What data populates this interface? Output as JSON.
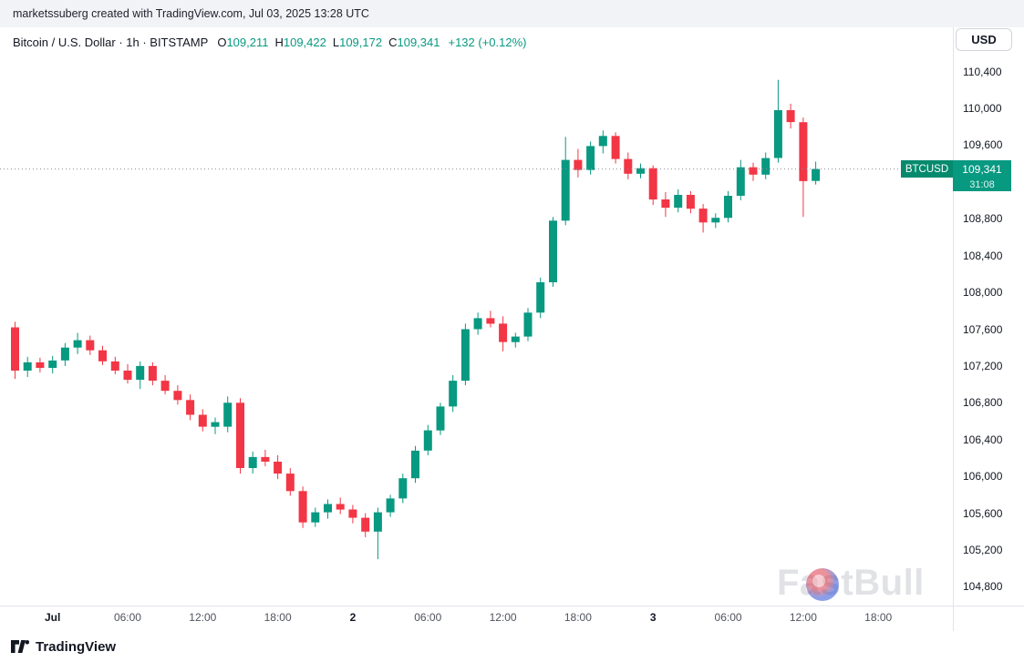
{
  "attribution": {
    "text": "marketssuberg created with TradingView.com, Jul 03, 2025 13:28 UTC"
  },
  "header": {
    "symbol_title": "Bitcoin / U.S. Dollar · 1h · BITSTAMP",
    "ohlc_display": {
      "o_label": "O",
      "o": "109,211",
      "h_label": "H",
      "h": "109,422",
      "l_label": "L",
      "l": "109,172",
      "c_label": "C",
      "c": "109,341",
      "change": "+132 (+0.12%)"
    },
    "currency_button": "USD"
  },
  "price_label": {
    "symbol": "BTCUSD",
    "price": "109,341",
    "countdown": "31:08"
  },
  "watermark": {
    "text": "FastBull"
  },
  "footer": {
    "brand": "TradingView"
  },
  "colors": {
    "up": "#089981",
    "down": "#f23645",
    "text": "#131722",
    "muted": "#787b86",
    "border": "#e0e3eb",
    "label_bg": "#089981"
  },
  "chart_data": {
    "type": "candlestick",
    "title": "Bitcoin / U.S. Dollar",
    "symbol": "BTCUSD",
    "exchange": "BITSTAMP",
    "interval": "1h",
    "grid": false,
    "ylim": [
      104650,
      110550
    ],
    "price_line": 109341,
    "countdown": "31:08",
    "ohlc_current": {
      "open": 109211,
      "high": 109422,
      "low": 109172,
      "close": 109341,
      "change": 132,
      "change_pct": 0.12
    },
    "y_axis_labels": [
      110400,
      110000,
      109600,
      108800,
      108400,
      108000,
      107600,
      107200,
      106800,
      106400,
      106000,
      105600,
      105200,
      104800
    ],
    "x_axis_ticks": [
      {
        "index": 3,
        "label": "Jul",
        "emphasis": true
      },
      {
        "index": 9,
        "label": "06:00",
        "emphasis": false
      },
      {
        "index": 15,
        "label": "12:00",
        "emphasis": false
      },
      {
        "index": 21,
        "label": "18:00",
        "emphasis": false
      },
      {
        "index": 27,
        "label": "2",
        "emphasis": true
      },
      {
        "index": 33,
        "label": "06:00",
        "emphasis": false
      },
      {
        "index": 39,
        "label": "12:00",
        "emphasis": false
      },
      {
        "index": 45,
        "label": "18:00",
        "emphasis": false
      },
      {
        "index": 51,
        "label": "3",
        "emphasis": true
      },
      {
        "index": 57,
        "label": "06:00",
        "emphasis": false
      },
      {
        "index": 63,
        "label": "12:00",
        "emphasis": false
      },
      {
        "index": 69,
        "label": "18:00",
        "emphasis": false
      }
    ],
    "candles_format": [
      "open",
      "high",
      "low",
      "close"
    ],
    "candles": [
      [
        107620,
        107680,
        107060,
        107150
      ],
      [
        107150,
        107300,
        107080,
        107240
      ],
      [
        107240,
        107290,
        107130,
        107180
      ],
      [
        107180,
        107310,
        107120,
        107260
      ],
      [
        107260,
        107450,
        107200,
        107400
      ],
      [
        107400,
        107560,
        107330,
        107480
      ],
      [
        107480,
        107530,
        107320,
        107370
      ],
      [
        107370,
        107420,
        107210,
        107250
      ],
      [
        107250,
        107300,
        107110,
        107150
      ],
      [
        107150,
        107220,
        107010,
        107050
      ],
      [
        107050,
        107250,
        106950,
        107200
      ],
      [
        107200,
        107240,
        106990,
        107040
      ],
      [
        107040,
        107100,
        106890,
        106930
      ],
      [
        106930,
        106990,
        106780,
        106830
      ],
      [
        106830,
        106890,
        106610,
        106670
      ],
      [
        106670,
        106730,
        106490,
        106540
      ],
      [
        106540,
        106640,
        106460,
        106590
      ],
      [
        106540,
        106870,
        106480,
        106800
      ],
      [
        106800,
        106850,
        106030,
        106090
      ],
      [
        106090,
        106270,
        106030,
        106210
      ],
      [
        106210,
        106290,
        106110,
        106160
      ],
      [
        106160,
        106230,
        105970,
        106030
      ],
      [
        106030,
        106090,
        105790,
        105840
      ],
      [
        105840,
        105890,
        105440,
        105500
      ],
      [
        105500,
        105660,
        105450,
        105610
      ],
      [
        105610,
        105750,
        105540,
        105700
      ],
      [
        105700,
        105770,
        105590,
        105640
      ],
      [
        105640,
        105690,
        105490,
        105550
      ],
      [
        105550,
        105600,
        105340,
        105400
      ],
      [
        105400,
        105660,
        105100,
        105610
      ],
      [
        105610,
        105800,
        105560,
        105760
      ],
      [
        105760,
        106030,
        105710,
        105980
      ],
      [
        105980,
        106330,
        105930,
        106280
      ],
      [
        106280,
        106560,
        106230,
        106500
      ],
      [
        106500,
        106800,
        106450,
        106760
      ],
      [
        106760,
        107100,
        106700,
        107040
      ],
      [
        107040,
        107660,
        106990,
        107600
      ],
      [
        107600,
        107780,
        107540,
        107720
      ],
      [
        107720,
        107800,
        107620,
        107660
      ],
      [
        107660,
        107740,
        107360,
        107460
      ],
      [
        107460,
        107560,
        107400,
        107520
      ],
      [
        107520,
        107830,
        107470,
        107780
      ],
      [
        107780,
        108160,
        107720,
        108110
      ],
      [
        108110,
        108820,
        108060,
        108780
      ],
      [
        108780,
        109690,
        108730,
        109440
      ],
      [
        109440,
        109560,
        109250,
        109330
      ],
      [
        109330,
        109640,
        109280,
        109590
      ],
      [
        109590,
        109760,
        109510,
        109700
      ],
      [
        109700,
        109740,
        109400,
        109450
      ],
      [
        109450,
        109520,
        109230,
        109290
      ],
      [
        109290,
        109400,
        109240,
        109350
      ],
      [
        109350,
        109380,
        108950,
        109010
      ],
      [
        109010,
        109090,
        108820,
        108920
      ],
      [
        108920,
        109120,
        108870,
        109060
      ],
      [
        109060,
        109100,
        108860,
        108910
      ],
      [
        108910,
        108960,
        108650,
        108760
      ],
      [
        108760,
        108860,
        108700,
        108810
      ],
      [
        108810,
        109100,
        108760,
        109050
      ],
      [
        109050,
        109440,
        109000,
        109360
      ],
      [
        109360,
        109410,
        109210,
        109280
      ],
      [
        109280,
        109520,
        109230,
        109460
      ],
      [
        109460,
        110310,
        109410,
        109980
      ],
      [
        109980,
        110050,
        109780,
        109850
      ],
      [
        109850,
        109900,
        108820,
        109210
      ],
      [
        109211,
        109422,
        109172,
        109341
      ]
    ]
  }
}
